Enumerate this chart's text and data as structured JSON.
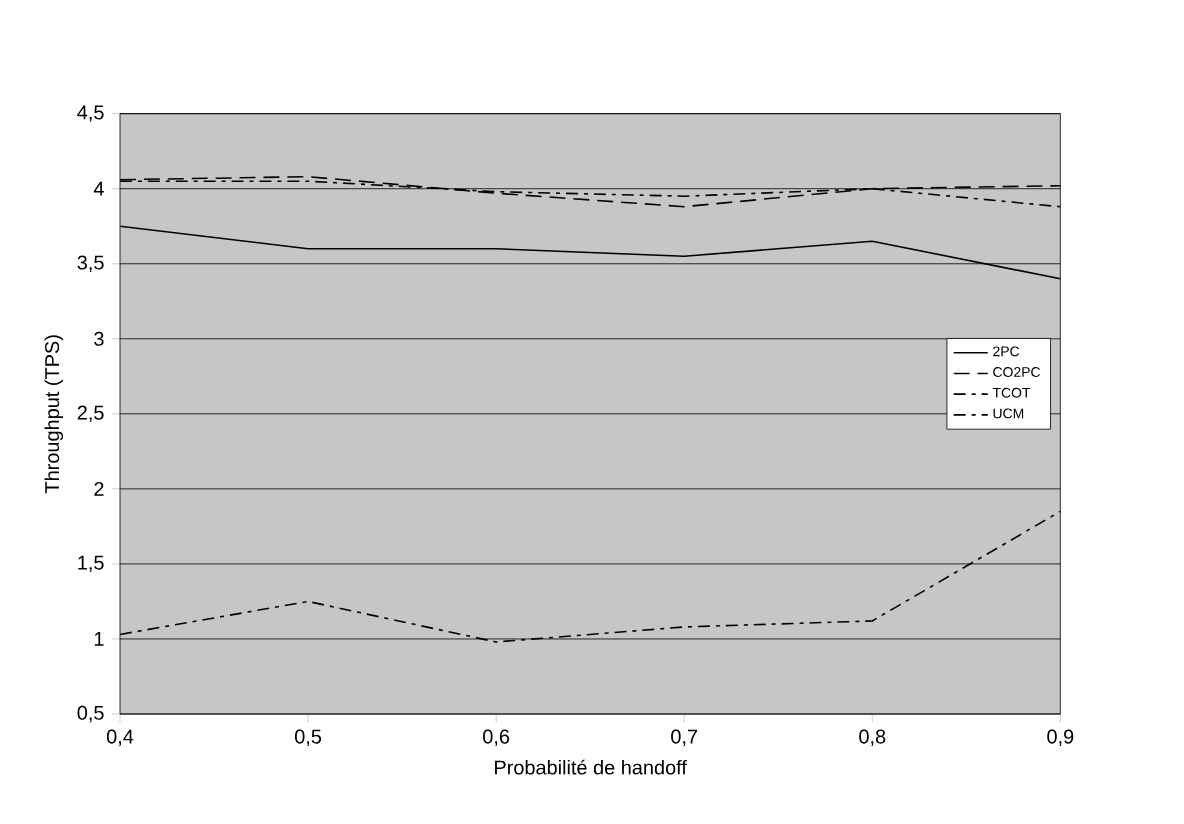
{
  "chart_data": {
    "type": "line",
    "xlabel": "Probabilité de handoff",
    "ylabel": "Throughput (TPS)",
    "x": [
      0.4,
      0.5,
      0.6,
      0.7,
      0.8,
      0.9
    ],
    "series": [
      {
        "name": "2PC",
        "color": "#000000",
        "line_style": "solid",
        "values": [
          3.75,
          3.6,
          3.6,
          3.55,
          3.65,
          3.4
        ]
      },
      {
        "name": "CO2PC",
        "color": "#000000",
        "line_style": "dashed",
        "values": [
          4.06,
          4.08,
          3.97,
          3.88,
          4.0,
          4.02
        ]
      },
      {
        "name": "TCOT",
        "color": "#000000",
        "line_style": "dashdotted",
        "values": [
          4.05,
          4.05,
          3.98,
          3.95,
          4.0,
          3.88
        ]
      },
      {
        "name": "UCM",
        "color": "#000000",
        "line_style": "dashdotted",
        "values": [
          1.03,
          1.25,
          0.98,
          1.08,
          1.12,
          1.85
        ]
      }
    ],
    "xlim": [
      0.4,
      0.9
    ],
    "ylim": [
      0.5,
      4.5
    ],
    "xticks": [
      {
        "value": 0.4,
        "label": "0,4"
      },
      {
        "value": 0.5,
        "label": "0,5"
      },
      {
        "value": 0.6,
        "label": "0,6"
      },
      {
        "value": 0.7,
        "label": "0,7"
      },
      {
        "value": 0.8,
        "label": "0,8"
      },
      {
        "value": 0.9,
        "label": "0,9"
      }
    ],
    "yticks": [
      {
        "value": 0.5,
        "label": "0,5"
      },
      {
        "value": 1,
        "label": "1"
      },
      {
        "value": 1.5,
        "label": "1,5"
      },
      {
        "value": 2,
        "label": "2"
      },
      {
        "value": 2.5,
        "label": "2,5"
      },
      {
        "value": 3,
        "label": "3"
      },
      {
        "value": 3.5,
        "label": "3,5"
      },
      {
        "value": 4,
        "label": "4"
      },
      {
        "value": 4.5,
        "label": "4,5"
      }
    ],
    "grid": "y",
    "legend": "right",
    "marker": "none"
  }
}
